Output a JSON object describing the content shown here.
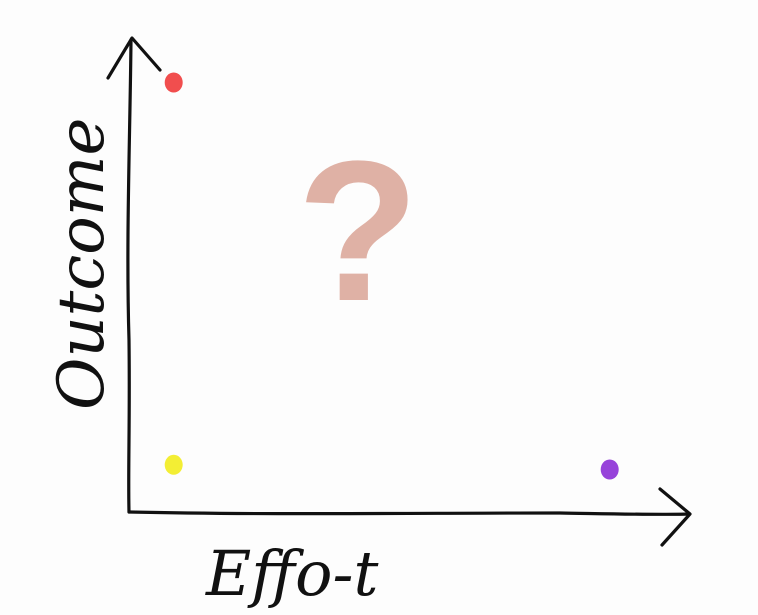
{
  "chart_data": {
    "type": "scatter",
    "title": "",
    "xlabel": "Effo-t",
    "ylabel": "Outcome",
    "annotation": "?",
    "xlim": [
      0,
      10
    ],
    "ylim": [
      0,
      10
    ],
    "grid": false,
    "points": [
      {
        "x": 0.8,
        "y": 9.1,
        "color": "#ef3b3b"
      },
      {
        "x": 0.8,
        "y": 1.0,
        "color": "#f2ec1e"
      },
      {
        "x": 8.6,
        "y": 0.9,
        "color": "#8c2fd6"
      }
    ]
  },
  "colors": {
    "axis": "#111111",
    "question_mark": "#dfb1a5",
    "background": "#fdfdfd"
  }
}
